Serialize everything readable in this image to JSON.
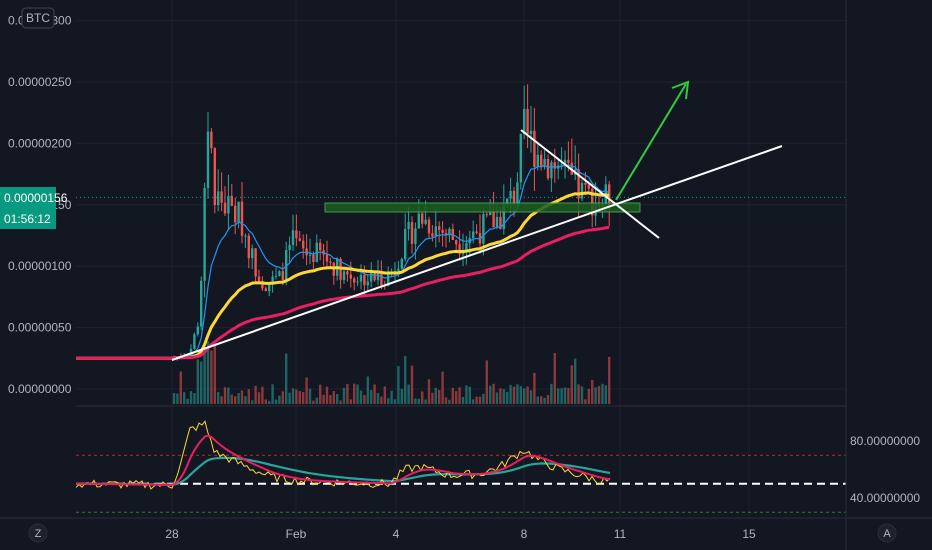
{
  "chart_data": [
    {
      "type": "candlestick",
      "symbol_badge": "BTC",
      "y_ticks": [
        "0.00000300",
        "0.00000250",
        "0.00000200",
        "0.00000150",
        "0.00000100",
        "0.00000050",
        "0.00000000"
      ],
      "x_ticks": [
        "28",
        "Feb",
        "4",
        "8",
        "11",
        "15"
      ],
      "last_price_label": "0.00000156",
      "countdown_label": "01:56:12",
      "ylim": [
        -1e-07,
        3.18e-06
      ],
      "last_price": 1.56e-06,
      "series": [
        {
          "name": "ema-fast",
          "color": "#2196f3"
        },
        {
          "name": "ema-mid",
          "color": "#fdd835"
        },
        {
          "name": "ema-slow",
          "color": "#e91e63"
        }
      ],
      "annotations": [
        "ascending trendline",
        "descending trendline",
        "support zone",
        "breakout arrow"
      ],
      "grid": true
    },
    {
      "type": "line",
      "panel": "oscillator",
      "y_ticks": [
        "80.00000000",
        "40.00000000"
      ],
      "ylim": [
        28,
        100
      ],
      "levels": [
        70,
        50,
        30
      ],
      "series": [
        {
          "name": "oscillator-fast",
          "color": "#fdd835"
        },
        {
          "name": "oscillator-signal",
          "color": "#e91e63"
        },
        {
          "name": "oscillator-slow",
          "color": "#26a69a"
        }
      ]
    }
  ],
  "bottom_bar": {
    "left_button": "Z",
    "right_button": "A"
  },
  "colors": {
    "up": "#26a69a",
    "down": "#ef5350",
    "background": "#131722",
    "grid": "#1e222d",
    "accent": "#089981"
  }
}
